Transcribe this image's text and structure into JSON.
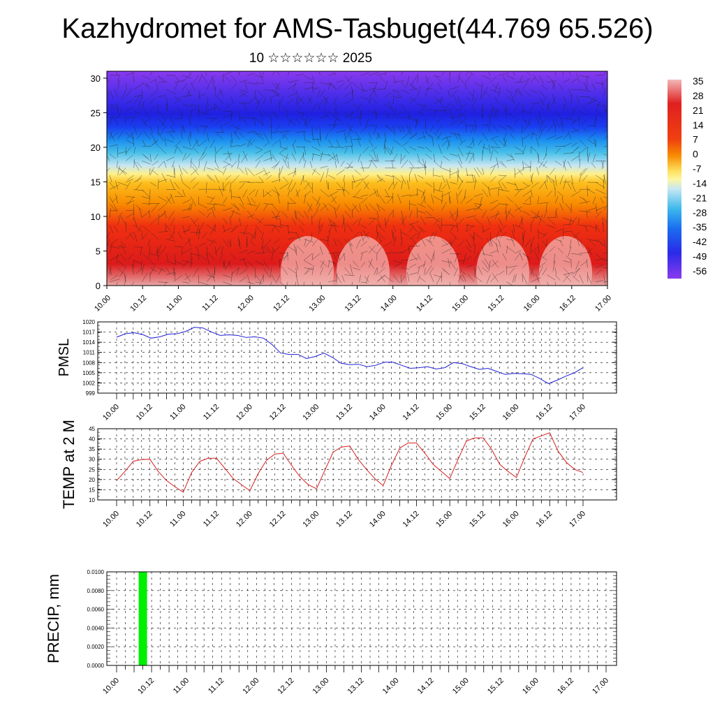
{
  "title": "Kazhydromet for AMS-Tasbuget(44.769 65.526)",
  "subtitle": "10 ☆☆☆☆☆☆ 2025",
  "chart_data": [
    {
      "type": "heatmap",
      "description_of_content": "cross-section temperature with wind barbs",
      "y_ticks": [
        0,
        5,
        10,
        15,
        20,
        25,
        30
      ],
      "ylim": [
        0,
        31
      ],
      "x_ticks": [
        "10.00",
        "10.12",
        "11.00",
        "11.12",
        "12.00",
        "12.12",
        "13.00",
        "13.12",
        "14.00",
        "14.12",
        "15.00",
        "15.12",
        "16.00",
        "16.12",
        "17.00"
      ],
      "colorbar_labels": [
        "35",
        "28",
        "21",
        "14",
        "7",
        "0",
        "-7",
        "-14",
        "-21",
        "-28",
        "-35",
        "-42",
        "-49",
        "-56"
      ],
      "colorbar_range": [
        -60,
        38
      ]
    },
    {
      "type": "line",
      "ylabel": "PMSL",
      "ylim": [
        999,
        1020
      ],
      "y_ticks": [
        999,
        1002,
        1005,
        1008,
        1011,
        1014,
        1017,
        1020
      ],
      "x_ticks": [
        "10.00",
        "10.12",
        "11.00",
        "11.12",
        "12.00",
        "12.12",
        "13.00",
        "13.12",
        "14.00",
        "14.12",
        "15.00",
        "15.12",
        "16.00",
        "16.12",
        "17.00"
      ],
      "line_color": "#1f1fd8",
      "values": [
        1015.5,
        1016.5,
        1016.8,
        1016.3,
        1015.2,
        1015.6,
        1016.4,
        1016.5,
        1017.2,
        1018.4,
        1018.2,
        1017.0,
        1016.0,
        1016.2,
        1016.0,
        1015.4,
        1015.6,
        1015.2,
        1013.3,
        1010.8,
        1010.4,
        1010.4,
        1009.2,
        1009.8,
        1010.8,
        1009.5,
        1007.8,
        1007.4,
        1007.5,
        1006.8,
        1007.2,
        1008.1,
        1008.1,
        1007.2,
        1006.3,
        1006.5,
        1006.8,
        1006.1,
        1006.5,
        1008.0,
        1007.7,
        1006.8,
        1006.0,
        1006.3,
        1005.4,
        1004.5,
        1004.8,
        1004.7,
        1004.5,
        1003.3,
        1001.8,
        1002.8,
        1004.0,
        1005.0,
        1006.5
      ]
    },
    {
      "type": "line",
      "ylabel": "TEMP at 2 M",
      "ylim": [
        10,
        45
      ],
      "y_ticks": [
        10,
        15,
        20,
        25,
        30,
        35,
        40,
        45
      ],
      "x_ticks": [
        "10.00",
        "10.12",
        "11.00",
        "11.12",
        "12.00",
        "12.12",
        "13.00",
        "13.12",
        "14.00",
        "14.12",
        "15.00",
        "15.12",
        "16.00",
        "16.12",
        "17.00"
      ],
      "line_color": "#d81f1f",
      "values": [
        19.5,
        24.0,
        29.0,
        29.8,
        30.0,
        24.0,
        19.5,
        16.5,
        13.8,
        23.5,
        29.0,
        30.5,
        30.5,
        25.5,
        20.5,
        17.5,
        14.5,
        23.0,
        29.5,
        32.5,
        33.0,
        27.0,
        21.5,
        17.5,
        15.5,
        24.5,
        33.5,
        36.0,
        36.5,
        30.0,
        25.0,
        20.5,
        17.0,
        27.0,
        35.5,
        38.0,
        38.0,
        33.0,
        27.5,
        24.0,
        20.5,
        30.0,
        39.0,
        40.5,
        40.5,
        35.0,
        27.5,
        24.0,
        21.0,
        31.0,
        40.0,
        41.5,
        43.0,
        34.0,
        28.5,
        25.0,
        23.5
      ]
    },
    {
      "type": "bar",
      "ylabel": "PRECIP, mm",
      "ylim": [
        0,
        0.01
      ],
      "y_ticks": [
        "0.0000",
        "0.0020",
        "0.0040",
        "0.0060",
        "0.0080",
        "0.0100"
      ],
      "x_ticks": [
        "10.00",
        "10.12",
        "11.00",
        "11.12",
        "12.00",
        "12.12",
        "13.00",
        "13.12",
        "14.00",
        "14.12",
        "15.00",
        "15.12",
        "16.00",
        "16.12",
        "17.00"
      ],
      "bar_color": "#00ee00",
      "bar_index": 5,
      "bar_value": 0.01
    }
  ]
}
